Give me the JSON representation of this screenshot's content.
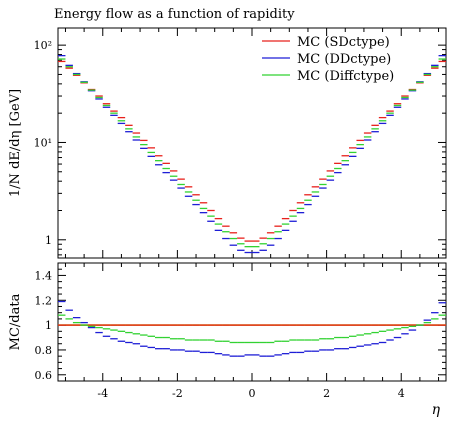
{
  "chart_data": [
    {
      "type": "line",
      "title": "Energy flow as a function of rapidity",
      "ylabel": "1/N dE/dη [GeV]",
      "y_scale": "log",
      "xlim": [
        -5.2,
        5.2
      ],
      "ylim": [
        0.65,
        150
      ],
      "y_ticks": [
        1,
        10,
        100
      ],
      "y_tick_labels": [
        "1",
        "10¹",
        "10²"
      ],
      "legend_position": "top-right",
      "legend": [
        "MC (SDctype)",
        "MC (DDctype)",
        "MC (Diffctype)"
      ],
      "colors": [
        "#e8211c",
        "#1e1ed6",
        "#32d232"
      ],
      "x": [
        -5.1,
        -4.9,
        -4.7,
        -4.5,
        -4.3,
        -4.1,
        -3.9,
        -3.7,
        -3.5,
        -3.3,
        -3.1,
        -2.9,
        -2.7,
        -2.5,
        -2.3,
        -2.1,
        -1.9,
        -1.7,
        -1.5,
        -1.3,
        -1.1,
        -0.9,
        -0.7,
        -0.5,
        -0.3,
        -0.1,
        0.1,
        0.3,
        0.5,
        0.7,
        0.9,
        1.1,
        1.3,
        1.5,
        1.7,
        1.9,
        2.1,
        2.3,
        2.5,
        2.7,
        2.9,
        3.1,
        3.3,
        3.5,
        3.7,
        3.9,
        4.1,
        4.3,
        4.5,
        4.7,
        4.9,
        5.1
      ],
      "series": [
        {
          "name": "MC (SDctype)",
          "values": [
            68,
            58,
            49,
            41,
            35,
            30,
            25,
            21,
            18,
            15,
            12.5,
            10.5,
            8.8,
            7.3,
            6.1,
            5.1,
            4.2,
            3.5,
            2.9,
            2.4,
            2.0,
            1.65,
            1.38,
            1.18,
            1.04,
            0.97,
            0.97,
            1.04,
            1.18,
            1.38,
            1.65,
            2.0,
            2.4,
            2.9,
            3.5,
            4.2,
            5.1,
            6.1,
            7.3,
            8.8,
            10.5,
            12.5,
            15,
            18,
            21,
            25,
            30,
            35,
            41,
            49,
            58,
            68
          ]
        },
        {
          "name": "MC (DDctype)",
          "values": [
            78,
            62,
            51,
            42,
            34,
            28,
            23,
            19,
            15.7,
            12.9,
            10.6,
            8.7,
            7.2,
            5.9,
            4.9,
            4.1,
            3.4,
            2.8,
            2.3,
            1.9,
            1.55,
            1.25,
            1.03,
            0.88,
            0.78,
            0.74,
            0.74,
            0.78,
            0.88,
            1.03,
            1.25,
            1.55,
            1.9,
            2.3,
            2.8,
            3.4,
            4.1,
            4.9,
            5.9,
            7.2,
            8.7,
            10.6,
            12.9,
            15.7,
            19,
            23,
            28,
            34,
            42,
            51,
            62,
            78
          ]
        },
        {
          "name": "MC (Diffctype)",
          "values": [
            72,
            60,
            50,
            41.5,
            34.5,
            29,
            24,
            20,
            16.7,
            13.8,
            11.4,
            9.5,
            7.9,
            6.5,
            5.4,
            4.5,
            3.7,
            3.1,
            2.55,
            2.1,
            1.75,
            1.45,
            1.21,
            1.03,
            0.91,
            0.85,
            0.85,
            0.91,
            1.03,
            1.21,
            1.45,
            1.75,
            2.1,
            2.55,
            3.1,
            3.7,
            4.5,
            5.4,
            6.5,
            7.9,
            9.5,
            11.4,
            13.8,
            16.7,
            20,
            24,
            29,
            34.5,
            41.5,
            50,
            60,
            72
          ]
        }
      ]
    },
    {
      "type": "line",
      "ylabel": "MC/data",
      "xlabel": "η",
      "xlim": [
        -5.2,
        5.2
      ],
      "ylim": [
        0.55,
        1.5
      ],
      "x_ticks": [
        -4,
        -2,
        0,
        2,
        4
      ],
      "x_tick_labels": [
        "-4",
        "-2",
        "0",
        "2",
        "4"
      ],
      "y_ticks": [
        0.6,
        0.8,
        1.0,
        1.2,
        1.4
      ],
      "y_tick_labels": [
        "0.6",
        "0.8",
        "1",
        "1.2",
        "1.4"
      ],
      "reference_line": {
        "y": 1.0,
        "color": "#b8a800"
      },
      "colors": [
        "#e8211c",
        "#1e1ed6",
        "#32d232"
      ],
      "x": [
        -5.1,
        -4.9,
        -4.7,
        -4.5,
        -4.3,
        -4.1,
        -3.9,
        -3.7,
        -3.5,
        -3.3,
        -3.1,
        -2.9,
        -2.7,
        -2.5,
        -2.3,
        -2.1,
        -1.9,
        -1.7,
        -1.5,
        -1.3,
        -1.1,
        -0.9,
        -0.7,
        -0.5,
        -0.3,
        -0.1,
        0.1,
        0.3,
        0.5,
        0.7,
        0.9,
        1.1,
        1.3,
        1.5,
        1.7,
        1.9,
        2.1,
        2.3,
        2.5,
        2.7,
        2.9,
        3.1,
        3.3,
        3.5,
        3.7,
        3.9,
        4.1,
        4.3,
        4.5,
        4.7,
        4.9,
        5.1
      ],
      "series": [
        {
          "name": "MC (SDctype)",
          "values": [
            1.0,
            1.0,
            1.0,
            1.0,
            1.0,
            1.0,
            1.0,
            1.0,
            1.0,
            1.0,
            1.0,
            1.0,
            1.0,
            1.0,
            1.0,
            1.0,
            1.0,
            1.0,
            1.0,
            1.0,
            1.0,
            1.0,
            1.0,
            1.0,
            1.0,
            1.0,
            1.0,
            1.0,
            1.0,
            1.0,
            1.0,
            1.0,
            1.0,
            1.0,
            1.0,
            1.0,
            1.0,
            1.0,
            1.0,
            1.0,
            1.0,
            1.0,
            1.0,
            1.0,
            1.0,
            1.0,
            1.0,
            1.0,
            1.0,
            1.0,
            1.0,
            1.0
          ]
        },
        {
          "name": "MC (DDctype)",
          "values": [
            1.19,
            1.12,
            1.06,
            1.02,
            0.98,
            0.94,
            0.91,
            0.89,
            0.87,
            0.86,
            0.85,
            0.83,
            0.82,
            0.81,
            0.81,
            0.8,
            0.8,
            0.79,
            0.79,
            0.78,
            0.78,
            0.77,
            0.76,
            0.75,
            0.75,
            0.76,
            0.76,
            0.75,
            0.75,
            0.76,
            0.77,
            0.78,
            0.78,
            0.79,
            0.79,
            0.8,
            0.8,
            0.81,
            0.81,
            0.82,
            0.83,
            0.84,
            0.85,
            0.86,
            0.88,
            0.9,
            0.93,
            0.96,
            1.0,
            1.04,
            1.1,
            1.18
          ]
        },
        {
          "name": "MC (Diffctype)",
          "values": [
            1.08,
            1.05,
            1.02,
            1.0,
            0.99,
            0.98,
            0.97,
            0.96,
            0.95,
            0.94,
            0.93,
            0.92,
            0.91,
            0.9,
            0.9,
            0.89,
            0.89,
            0.88,
            0.88,
            0.88,
            0.88,
            0.87,
            0.87,
            0.86,
            0.86,
            0.86,
            0.86,
            0.86,
            0.86,
            0.87,
            0.87,
            0.88,
            0.88,
            0.88,
            0.88,
            0.89,
            0.89,
            0.9,
            0.9,
            0.91,
            0.92,
            0.93,
            0.94,
            0.95,
            0.96,
            0.97,
            0.98,
            0.99,
            1.0,
            1.02,
            1.05,
            1.08
          ]
        }
      ]
    }
  ]
}
